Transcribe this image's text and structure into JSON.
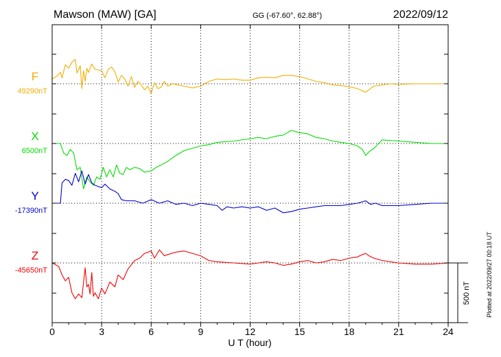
{
  "header": {
    "station": "Mawson (MAW)  [GA]",
    "coords": "GG (-67.60°,  62.88°)",
    "date": "2022/09/12"
  },
  "footer": {
    "plotted": "Plotted at 2022/09/27 00:18 UT",
    "scale_label": "500 nT"
  },
  "chart_data": {
    "type": "line",
    "xlabel": "U T (hour)",
    "xlim": [
      0,
      24
    ],
    "xticks": [
      0,
      3,
      6,
      9,
      12,
      15,
      18,
      21,
      24
    ],
    "scale_nT": 500,
    "colors": {
      "F": "#f2ae00",
      "X": "#00dd00",
      "Y": "#0000cc",
      "Z": "#ee0000"
    },
    "series": [
      {
        "name": "F",
        "baseline_label": "49290nT",
        "baseline_nT": 49290,
        "x": [
          0,
          0.3,
          0.5,
          0.6,
          0.8,
          1.0,
          1.2,
          1.4,
          1.5,
          1.7,
          1.8,
          1.9,
          2.0,
          2.1,
          2.2,
          2.4,
          2.6,
          2.8,
          3.0,
          3.2,
          3.4,
          3.6,
          3.8,
          4.0,
          4.2,
          4.4,
          4.6,
          4.8,
          5.0,
          5.2,
          5.4,
          5.6,
          5.8,
          6.0,
          6.2,
          6.4,
          6.6,
          6.8,
          7.0,
          7.3,
          7.6,
          8.0,
          8.5,
          9.0,
          9.5,
          10.0,
          10.5,
          11.0,
          11.5,
          12.0,
          12.5,
          13.0,
          13.5,
          14.0,
          14.5,
          15.0,
          15.5,
          16.0,
          16.5,
          17.0,
          17.5,
          18.0,
          18.5,
          18.8,
          19.0,
          19.2,
          19.5,
          20.0,
          20.5,
          21.0,
          22.0,
          23.0,
          24.0
        ],
        "y": [
          40,
          65,
          95,
          50,
          160,
          130,
          180,
          205,
          90,
          150,
          -40,
          110,
          20,
          130,
          95,
          165,
          120,
          115,
          110,
          50,
          120,
          140,
          100,
          15,
          70,
          40,
          -20,
          60,
          -30,
          20,
          -10,
          -50,
          -20,
          -80,
          10,
          -40,
          -30,
          20,
          -20,
          0,
          -10,
          -20,
          -35,
          -20,
          20,
          40,
          35,
          40,
          30,
          30,
          50,
          55,
          50,
          70,
          70,
          60,
          40,
          20,
          10,
          -10,
          -15,
          -25,
          -40,
          -60,
          -70,
          -50,
          -20,
          -10,
          0,
          -5,
          0,
          0,
          0
        ]
      },
      {
        "name": "X",
        "baseline_label": "6500nT",
        "baseline_nT": 6500,
        "x": [
          0,
          0.5,
          0.7,
          0.9,
          1.1,
          1.3,
          1.5,
          1.7,
          1.9,
          2.1,
          2.3,
          2.5,
          2.7,
          2.9,
          3.1,
          3.3,
          3.5,
          3.7,
          3.9,
          4.1,
          4.3,
          4.5,
          4.7,
          5.0,
          5.3,
          5.6,
          6.0,
          6.3,
          6.6,
          7.0,
          7.5,
          8.0,
          8.5,
          9.0,
          9.5,
          10.0,
          11.0,
          12.0,
          12.5,
          13.0,
          13.5,
          14.0,
          14.5,
          15.0,
          15.5,
          16.0,
          16.5,
          17.0,
          17.5,
          18.0,
          18.5,
          18.8,
          19.0,
          19.2,
          19.5,
          20.0,
          21.0,
          22.0,
          23.0,
          24.0
        ],
        "y": [
          0,
          0,
          -80,
          -100,
          -50,
          -80,
          -220,
          -200,
          -380,
          -280,
          -320,
          -350,
          -280,
          -300,
          -200,
          -280,
          -220,
          -280,
          -180,
          -250,
          -260,
          -200,
          -220,
          -200,
          -210,
          -240,
          -230,
          -200,
          -180,
          -150,
          -100,
          -60,
          -40,
          -20,
          -10,
          10,
          20,
          40,
          50,
          40,
          60,
          70,
          110,
          90,
          80,
          50,
          40,
          20,
          10,
          0,
          -20,
          -50,
          -100,
          -70,
          -40,
          30,
          20,
          10,
          0,
          0
        ]
      },
      {
        "name": "Y",
        "baseline_label": "-17390nT",
        "baseline_nT": -17390,
        "x": [
          0,
          0.5,
          0.6,
          0.8,
          1.0,
          1.2,
          1.4,
          1.6,
          1.8,
          2.0,
          2.2,
          2.4,
          2.6,
          2.8,
          3.0,
          3.2,
          3.5,
          3.8,
          4.0,
          4.2,
          4.5,
          5.0,
          5.5,
          6.0,
          6.5,
          7.0,
          7.5,
          8.0,
          8.5,
          9.0,
          9.5,
          10.0,
          10.3,
          10.6,
          11.0,
          11.5,
          12.0,
          12.5,
          13.0,
          13.5,
          14.0,
          14.5,
          15.0,
          15.5,
          16.0,
          16.5,
          17.0,
          17.5,
          18.0,
          18.5,
          19.0,
          19.3,
          19.6,
          20.0,
          21.0,
          22.0,
          23.0,
          24.0
        ],
        "y": [
          0,
          0,
          170,
          200,
          190,
          150,
          250,
          180,
          270,
          160,
          240,
          170,
          150,
          140,
          130,
          160,
          120,
          100,
          80,
          30,
          20,
          20,
          0,
          30,
          0,
          20,
          -10,
          0,
          -20,
          0,
          -10,
          -20,
          -60,
          -30,
          -40,
          -30,
          -40,
          -30,
          -60,
          -40,
          -80,
          -70,
          -50,
          -40,
          -30,
          -20,
          -20,
          -20,
          -10,
          0,
          20,
          -10,
          0,
          -20,
          -20,
          -10,
          0,
          0
        ]
      },
      {
        "name": "Z",
        "baseline_label": "-45650nT",
        "baseline_nT": -45650,
        "x": [
          0,
          0.4,
          0.6,
          0.8,
          1.0,
          1.2,
          1.4,
          1.6,
          1.8,
          2.0,
          2.1,
          2.2,
          2.3,
          2.4,
          2.5,
          2.6,
          2.8,
          3.0,
          3.2,
          3.5,
          3.8,
          4.0,
          4.3,
          4.6,
          5.0,
          5.3,
          5.6,
          6.0,
          6.2,
          6.5,
          6.8,
          7.0,
          7.5,
          8.0,
          8.5,
          9.0,
          9.5,
          10.0,
          11.0,
          12.0,
          12.5,
          13.0,
          13.5,
          14.0,
          14.5,
          15.0,
          15.5,
          16.0,
          16.5,
          17.0,
          17.5,
          18.0,
          18.5,
          18.8,
          19.0,
          19.2,
          19.5,
          20.0,
          21.0,
          22.0,
          23.0,
          24.0
        ],
        "y": [
          0,
          -30,
          -100,
          -150,
          -120,
          -250,
          -300,
          -260,
          -290,
          -40,
          -200,
          -180,
          -260,
          -80,
          -280,
          -250,
          -300,
          -210,
          -260,
          -160,
          -200,
          -100,
          -140,
          -50,
          20,
          40,
          80,
          100,
          40,
          110,
          60,
          70,
          90,
          100,
          80,
          60,
          20,
          10,
          0,
          -10,
          0,
          10,
          0,
          -20,
          -10,
          10,
          20,
          0,
          10,
          30,
          20,
          40,
          50,
          70,
          80,
          60,
          40,
          20,
          0,
          -10,
          -10,
          0
        ]
      }
    ]
  }
}
